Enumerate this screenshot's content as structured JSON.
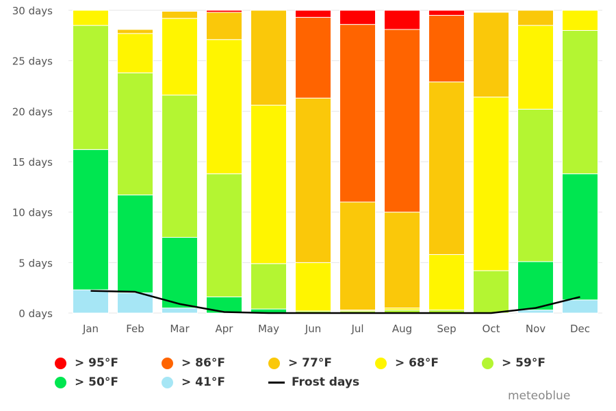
{
  "chart_data": {
    "type": "bar",
    "stacked": true,
    "title": "",
    "xlabel": "",
    "ylabel": "",
    "categories": [
      "Jan",
      "Feb",
      "Mar",
      "Apr",
      "May",
      "Jun",
      "Jul",
      "Aug",
      "Sep",
      "Oct",
      "Nov",
      "Dec"
    ],
    "ylim": [
      0,
      30
    ],
    "yticks": [
      0,
      5,
      10,
      15,
      20,
      25,
      30
    ],
    "ytick_labels": [
      "0 days",
      "5 days",
      "10 days",
      "15 days",
      "20 days",
      "25 days",
      "30 days"
    ],
    "grid": true,
    "legend_position": "bottom",
    "series": [
      {
        "name": "> 41°F",
        "color": "#a6e6f5",
        "values": [
          2.3,
          2.0,
          0.5,
          0.0,
          0.0,
          0.0,
          0.0,
          0.0,
          0.0,
          0.0,
          0.3,
          1.3
        ]
      },
      {
        "name": "> 50°F",
        "color": "#00e650",
        "values": [
          13.9,
          9.7,
          7.0,
          1.6,
          0.4,
          0.0,
          0.0,
          0.0,
          0.0,
          0.0,
          4.8,
          12.5
        ]
      },
      {
        "name": "> 59°F",
        "color": "#b4f532",
        "values": [
          12.3,
          12.1,
          14.1,
          12.2,
          4.5,
          0.2,
          0.2,
          0.3,
          0.3,
          4.2,
          15.1,
          14.2
        ]
      },
      {
        "name": "> 68°F",
        "color": "#fff500",
        "values": [
          1.5,
          3.9,
          7.6,
          13.3,
          15.7,
          4.8,
          0.1,
          0.2,
          5.5,
          17.2,
          8.3,
          2.1
        ]
      },
      {
        "name": "> 77°F",
        "color": "#fac80a",
        "values": [
          0.0,
          0.4,
          0.7,
          2.7,
          9.4,
          16.3,
          10.7,
          9.5,
          17.1,
          8.4,
          1.5,
          0.0
        ]
      },
      {
        "name": "> 86°F",
        "color": "#ff6400",
        "values": [
          0.0,
          0.0,
          0.0,
          0.0,
          0.0,
          8.0,
          17.6,
          18.1,
          6.6,
          0.0,
          0.0,
          0.0
        ]
      },
      {
        "name": "> 95°F",
        "color": "#ff0000",
        "values": [
          0.0,
          0.0,
          0.0,
          0.2,
          0.0,
          0.7,
          1.4,
          1.9,
          0.5,
          0.0,
          0.0,
          0.0
        ]
      }
    ],
    "line_series": {
      "name": "Frost days",
      "color": "#000000",
      "values": [
        2.2,
        2.1,
        0.9,
        0.1,
        0.0,
        0.0,
        0.0,
        0.0,
        0.0,
        0.0,
        0.5,
        1.6
      ]
    }
  },
  "legend": {
    "rows": [
      [
        {
          "label": "> 95°F",
          "color": "#ff0000"
        },
        {
          "label": "> 86°F",
          "color": "#ff6400"
        },
        {
          "label": "> 77°F",
          "color": "#fac80a"
        },
        {
          "label": "> 68°F",
          "color": "#fff500"
        },
        {
          "label": "> 59°F",
          "color": "#b4f532"
        }
      ],
      [
        {
          "label": "> 50°F",
          "color": "#00e650"
        },
        {
          "label": "> 41°F",
          "color": "#a6e6f5"
        },
        {
          "label": "Frost days",
          "line": true
        }
      ]
    ]
  },
  "credit": "meteoblue"
}
